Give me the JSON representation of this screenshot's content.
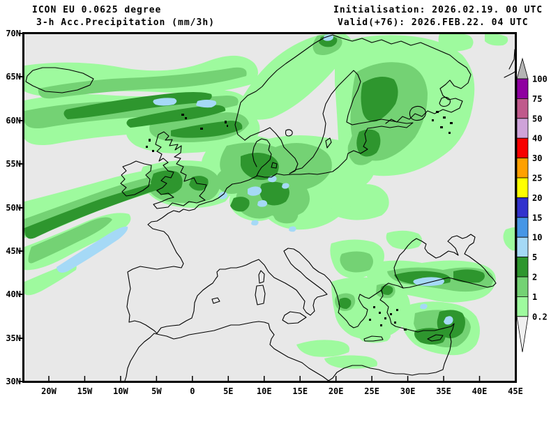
{
  "header": {
    "model": "ICON EU 0.0625 degree",
    "product": "3-h Acc.Precipitation (mm/3h)",
    "init": "Initialisation: 2026.02.19. 00 UTC",
    "valid": "Valid(+76): 2026.FEB.22. 04 UTC"
  },
  "map": {
    "lat_labels": [
      "70N",
      "65N",
      "60N",
      "55N",
      "50N",
      "45N",
      "40N",
      "35N",
      "30N"
    ],
    "lon_labels": [
      "20W",
      "15W",
      "10W",
      "5W",
      "0",
      "5E",
      "10E",
      "15E",
      "20E",
      "25E",
      "30E",
      "35E",
      "40E",
      "45E"
    ]
  },
  "legend": {
    "values": [
      "100",
      "75",
      "50",
      "40",
      "30",
      "25",
      "20",
      "15",
      "10",
      "5",
      "2",
      "1",
      "0.2"
    ],
    "band_colors": [
      "#8F00A0",
      "#C05A8C",
      "#CFA3D9",
      "#F80000",
      "#FFA000",
      "#FFFF00",
      "#3232CD",
      "#4696E6",
      "#A5D9F6",
      "#2E962E",
      "#74D274",
      "#9EFA9E"
    ],
    "over_color": "#B4B4B4",
    "under_color": "#F0F0F0"
  },
  "palette": {
    "background": "#E8E8E8",
    "precip_light": "#9EFA9E",
    "precip_medium": "#74D274",
    "precip_dark": "#2E962E",
    "precip_heavy_cyan": "#A5D9F6",
    "coastline": "#000000",
    "text": "#000000"
  }
}
